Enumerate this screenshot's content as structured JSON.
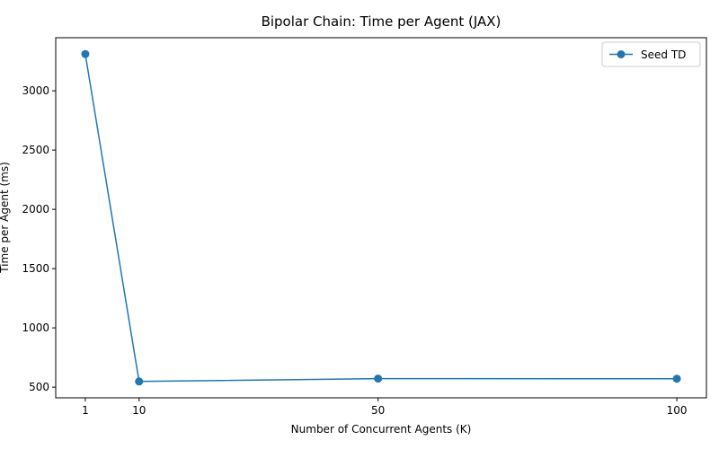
{
  "chart_data": {
    "type": "line",
    "title": "Bipolar Chain: Time per Agent (JAX)",
    "xlabel": "Number of Concurrent Agents (K)",
    "ylabel": "Time per Agent (ms)",
    "x": [
      1,
      10,
      50,
      100
    ],
    "series": [
      {
        "name": "Seed TD",
        "values": [
          3310,
          548,
          572,
          571
        ],
        "color": "#1f77b4",
        "marker": "circle"
      }
    ],
    "xticks": [
      1,
      10,
      50,
      100
    ],
    "yticks": [
      500,
      1000,
      1500,
      2000,
      2500,
      3000
    ],
    "xlim": [
      -3.95,
      104.95
    ],
    "ylim": [
      410,
      3448
    ],
    "grid": false,
    "legend": "top-right"
  }
}
